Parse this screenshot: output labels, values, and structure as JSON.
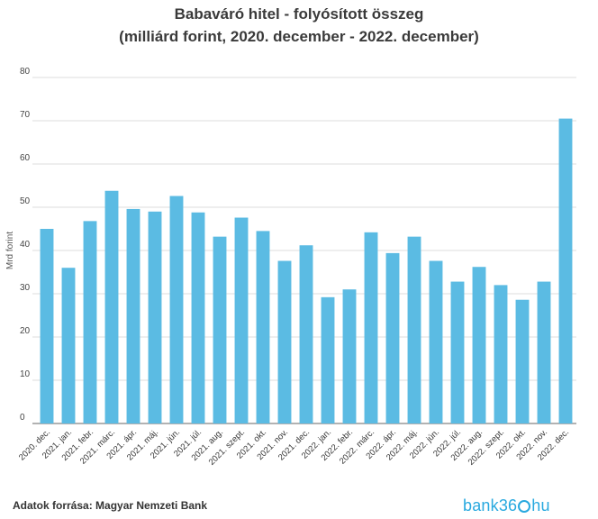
{
  "chart_data": {
    "type": "bar",
    "title": "Babaváró hitel - folyósított összeg",
    "subtitle": "(milliárd forint, 2020. december - 2022. december)",
    "ylabel": "Mrd forint",
    "xlabel": "",
    "ylim": [
      0,
      80
    ],
    "yticks": [
      0,
      10,
      20,
      30,
      40,
      50,
      60,
      70,
      80
    ],
    "grid": true,
    "bar_color": "#5bbbe3",
    "categories": [
      "2020. dec.",
      "2021. jan.",
      "2021. febr.",
      "2021. márc.",
      "2021. ápr.",
      "2021. máj.",
      "2021. jún.",
      "2021. júl.",
      "2021. aug.",
      "2021. szept.",
      "2021. okt.",
      "2021. nov.",
      "2021. dec.",
      "2022. jan.",
      "2022. febr.",
      "2022. márc.",
      "2022. ápr.",
      "2022. máj.",
      "2022. jún.",
      "2022. júl.",
      "2022. aug.",
      "2022. szept.",
      "2022. okt.",
      "2022. nov.",
      "2022. dec."
    ],
    "values": [
      45,
      36,
      46.8,
      53.8,
      49.6,
      49,
      52.6,
      48.8,
      43.2,
      47.6,
      44.5,
      37.6,
      41.2,
      29.2,
      31,
      44.2,
      39.4,
      43.2,
      37.6,
      32.8,
      36.2,
      32,
      28.6,
      32.8,
      70.5
    ]
  },
  "footer": {
    "source": "Adatok forrása: Magyar Nemzeti Bank",
    "brand_left": "bank36",
    "brand_right": "hu"
  }
}
